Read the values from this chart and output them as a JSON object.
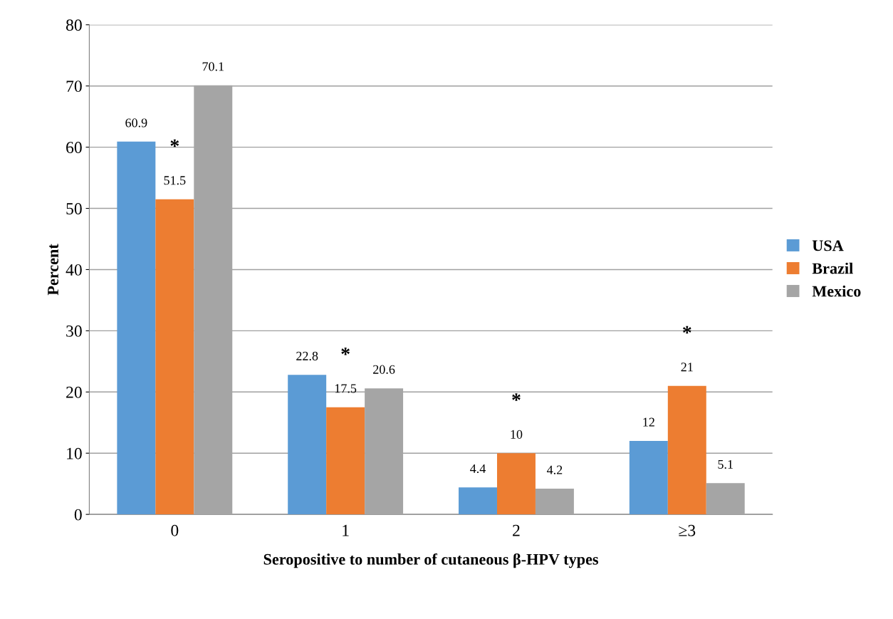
{
  "chart_data": {
    "type": "bar",
    "xlabel": "Seropositive to number of cutaneous β-HPV types",
    "ylabel": "Percent",
    "categories": [
      "0",
      "1",
      "2",
      "≥3"
    ],
    "series": [
      {
        "name": "USA",
        "color": "#5b9bd5",
        "values": [
          60.9,
          22.8,
          4.4,
          12
        ]
      },
      {
        "name": "Brazil",
        "color": "#ed7d31",
        "values": [
          51.5,
          17.5,
          10,
          21
        ]
      },
      {
        "name": "Mexico",
        "color": "#a5a5a5",
        "values": [
          70.1,
          20.6,
          4.2,
          5.1
        ]
      }
    ],
    "ylim": [
      0,
      80
    ],
    "yticks": [
      0,
      10,
      20,
      30,
      40,
      50,
      60,
      70,
      80
    ],
    "grid": "y",
    "legend": "right",
    "data_labels": true,
    "annotations": [
      "*",
      "*",
      "*",
      "*"
    ]
  }
}
